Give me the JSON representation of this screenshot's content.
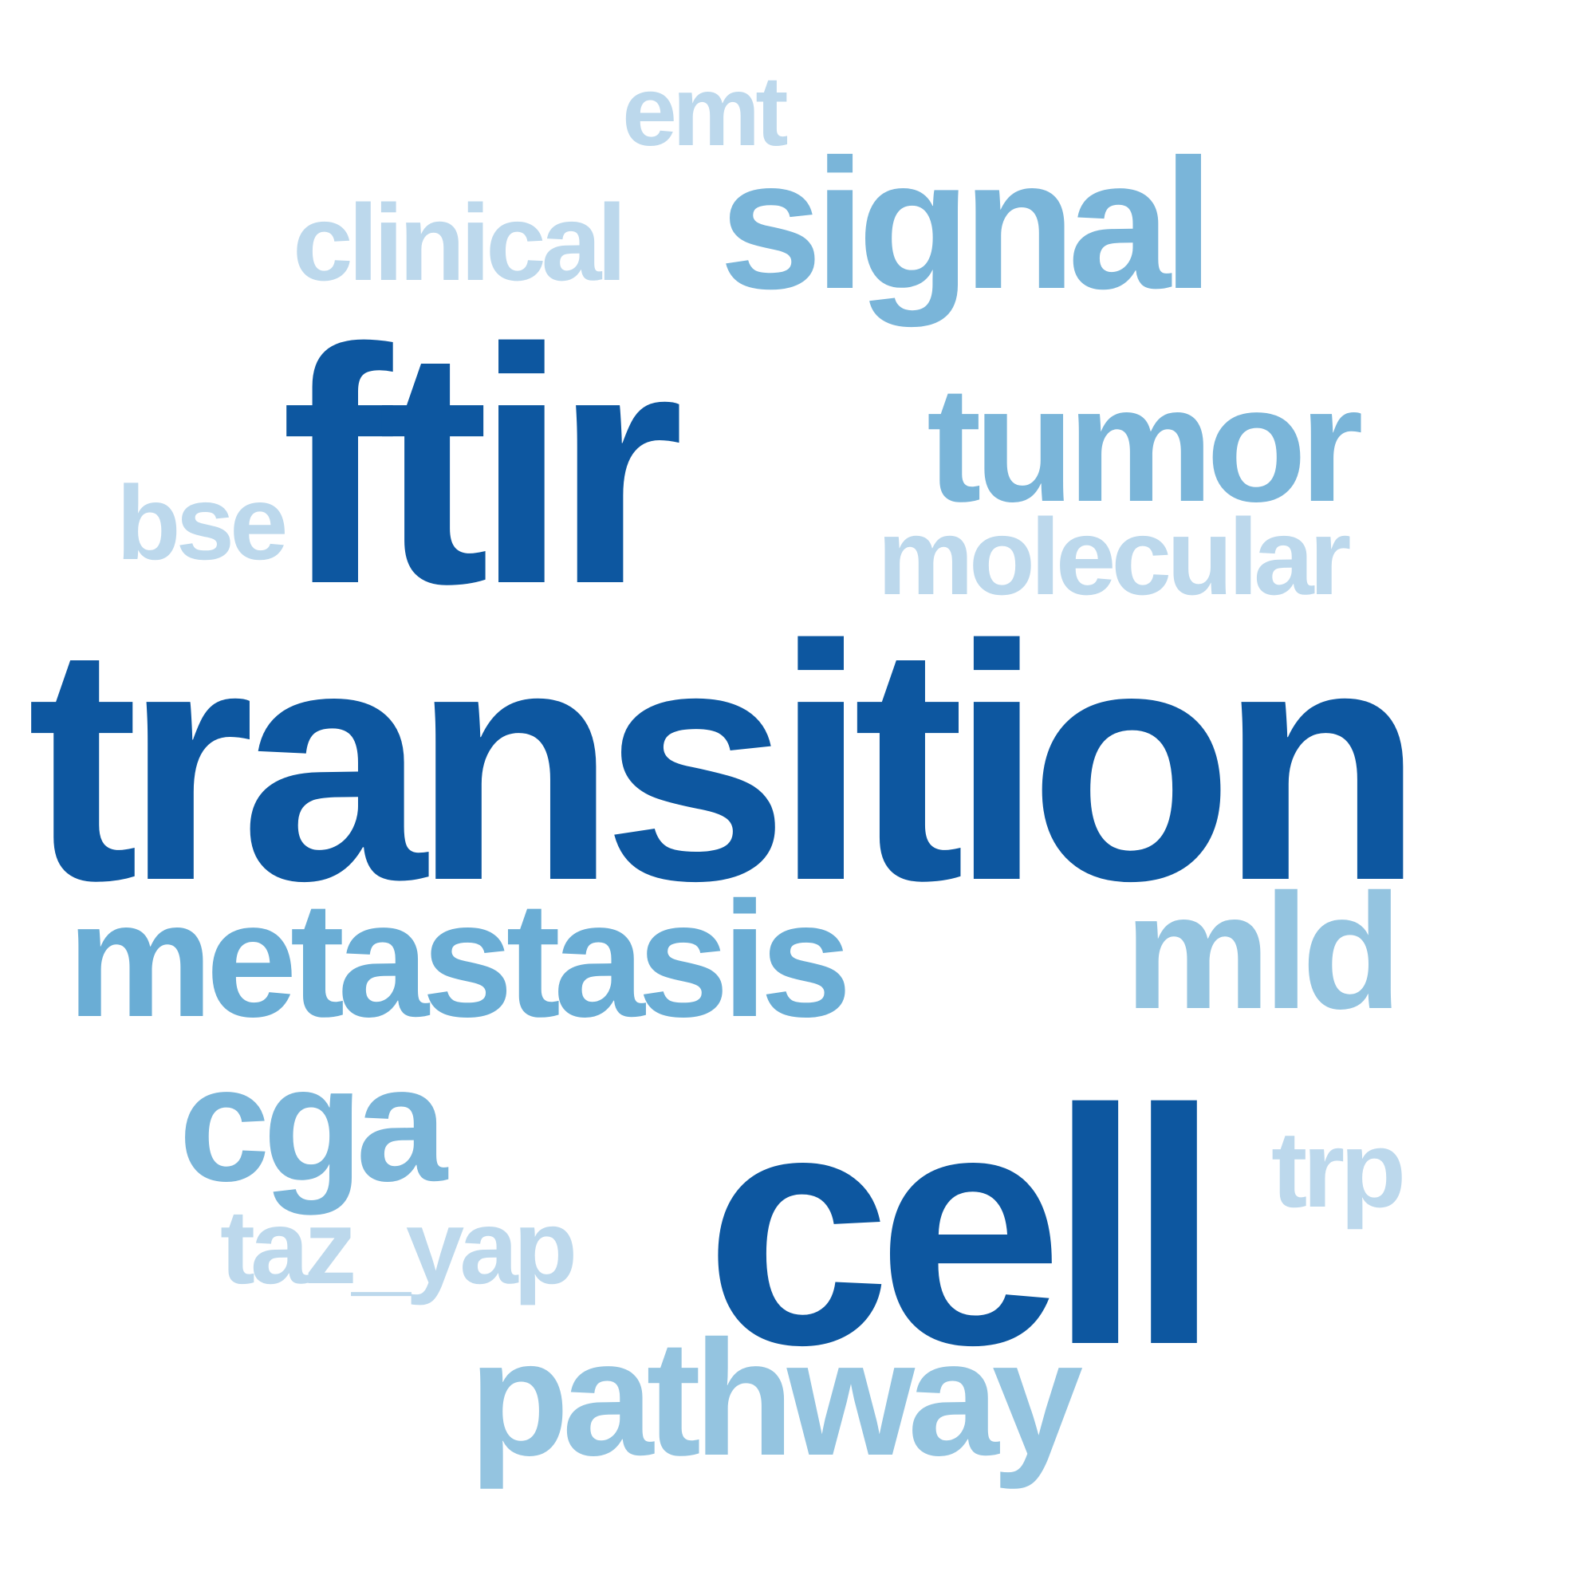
{
  "words": [
    {
      "id": "emt",
      "text": "emt",
      "tier": 5
    },
    {
      "id": "signal",
      "text": "signal",
      "tier": 3
    },
    {
      "id": "clinical",
      "text": "clinical",
      "tier": 5
    },
    {
      "id": "ftir",
      "text": "ftir",
      "tier": 1
    },
    {
      "id": "tumor",
      "text": "tumor",
      "tier": 3
    },
    {
      "id": "bse",
      "text": "bse",
      "tier": 5
    },
    {
      "id": "molecular",
      "text": "molecular",
      "tier": 5
    },
    {
      "id": "transition",
      "text": "transition",
      "tier": 1
    },
    {
      "id": "metastasis",
      "text": "metastasis",
      "tier": 2
    },
    {
      "id": "mld",
      "text": "mld",
      "tier": 4
    },
    {
      "id": "cga",
      "text": "cga",
      "tier": 3
    },
    {
      "id": "cell",
      "text": "cell",
      "tier": 1
    },
    {
      "id": "trp",
      "text": "trp",
      "tier": 5
    },
    {
      "id": "taz_yap",
      "text": "taz_yap",
      "tier": 5
    },
    {
      "id": "pathway",
      "text": "pathway",
      "tier": 4
    }
  ],
  "colors": {
    "tier_1": "#0d57a0",
    "tier_2": "#6aadd5",
    "tier_3": "#7ab5d9",
    "tier_4": "#94c4e0",
    "tier_5": "#bcd8ec",
    "background": "#ffffff"
  }
}
